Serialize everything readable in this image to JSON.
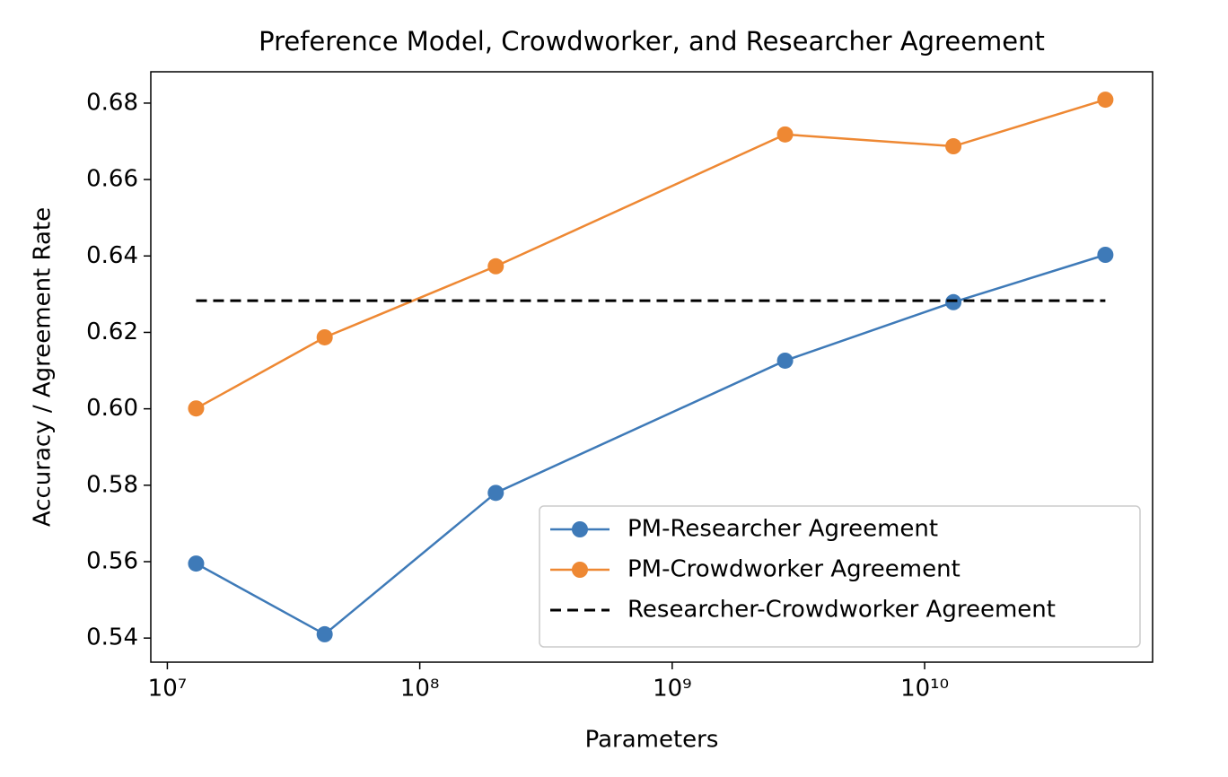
{
  "chart_data": {
    "type": "line",
    "title": "Preference Model, Crowdworker, and Researcher Agreement",
    "xlabel": "Parameters",
    "ylabel": "Accuracy / Agreement Rate",
    "x": [
      13000000,
      42000000,
      200000000,
      2800000000,
      13000000000,
      52000000000
    ],
    "xscale": "log",
    "xlim": [
      8600000,
      80000000000
    ],
    "xticks": [
      {
        "value": 10000000,
        "label": "10⁷"
      },
      {
        "value": 100000000,
        "label": "10⁸"
      },
      {
        "value": 1000000000,
        "label": "10⁹"
      },
      {
        "value": 10000000000,
        "label": "10¹⁰"
      }
    ],
    "ylim": [
      0.5337,
      0.6882
    ],
    "yticks": [
      {
        "value": 0.54,
        "label": "0.54"
      },
      {
        "value": 0.56,
        "label": "0.56"
      },
      {
        "value": 0.58,
        "label": "0.58"
      },
      {
        "value": 0.6,
        "label": "0.60"
      },
      {
        "value": 0.62,
        "label": "0.62"
      },
      {
        "value": 0.64,
        "label": "0.64"
      },
      {
        "value": 0.66,
        "label": "0.66"
      },
      {
        "value": 0.68,
        "label": "0.68"
      }
    ],
    "legend": "lower right",
    "series": [
      {
        "name": "PM-Researcher Agreement",
        "color": "#3e7ab8",
        "marker": "o",
        "dash": false,
        "values": [
          0.5595,
          0.541,
          0.578,
          0.6126,
          0.6279,
          0.6403
        ]
      },
      {
        "name": "PM-Crowdworker Agreement",
        "color": "#ee8833",
        "marker": "o",
        "dash": false,
        "values": [
          0.6001,
          0.6187,
          0.6373,
          0.6718,
          0.6687,
          0.6809
        ]
      },
      {
        "name": "Researcher-Crowdworker Agreement",
        "color": "#000000",
        "marker": "none",
        "dash": true,
        "values": [
          0.6283,
          0.6283,
          0.6283,
          0.6283,
          0.6283,
          0.6283
        ]
      }
    ]
  }
}
